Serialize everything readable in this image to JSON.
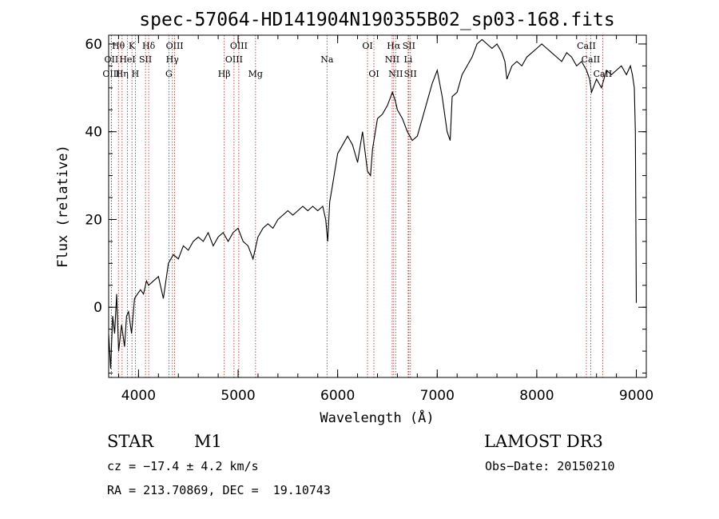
{
  "chart_data": {
    "type": "line",
    "title": "spec-57064-HD141904N190355B02_sp03-168.fits",
    "xlabel": "Wavelength (Å)",
    "ylabel": "Flux (relative)",
    "xlim": [
      3700,
      9100
    ],
    "ylim": [
      -16,
      62
    ],
    "xticks": [
      4000,
      5000,
      6000,
      7000,
      8000,
      9000
    ],
    "yticks": [
      0,
      20,
      40,
      60
    ],
    "series": [
      {
        "name": "flux",
        "x": [
          3700,
          3720,
          3740,
          3760,
          3780,
          3800,
          3830,
          3860,
          3880,
          3900,
          3930,
          3960,
          3990,
          4020,
          4050,
          4080,
          4100,
          4150,
          4200,
          4250,
          4300,
          4350,
          4400,
          4450,
          4500,
          4550,
          4600,
          4650,
          4700,
          4750,
          4800,
          4850,
          4900,
          4950,
          5000,
          5050,
          5100,
          5150,
          5200,
          5250,
          5300,
          5350,
          5400,
          5450,
          5500,
          5550,
          5600,
          5650,
          5700,
          5750,
          5800,
          5850,
          5880,
          5900,
          5920,
          5950,
          6000,
          6050,
          6100,
          6150,
          6200,
          6250,
          6300,
          6330,
          6350,
          6400,
          6450,
          6500,
          6550,
          6580,
          6600,
          6650,
          6700,
          6750,
          6800,
          6850,
          6900,
          6950,
          7000,
          7050,
          7100,
          7130,
          7150,
          7200,
          7250,
          7300,
          7350,
          7400,
          7450,
          7500,
          7550,
          7600,
          7650,
          7680,
          7700,
          7750,
          7800,
          7850,
          7900,
          7950,
          8000,
          8050,
          8100,
          8150,
          8200,
          8250,
          8300,
          8350,
          8400,
          8450,
          8500,
          8530,
          8550,
          8600,
          8650,
          8700,
          8750,
          8800,
          8850,
          8900,
          8940,
          8960,
          8980,
          8990,
          9000
        ],
        "y": [
          -6,
          -14,
          -2,
          -6,
          3,
          -10,
          -4,
          -9,
          -2,
          -1,
          -6,
          2,
          3,
          4,
          3,
          6,
          5,
          6,
          7,
          2,
          10,
          12,
          11,
          14,
          13,
          15,
          16,
          15,
          17,
          14,
          16,
          17,
          15,
          17,
          18,
          15,
          14,
          11,
          16,
          18,
          19,
          18,
          20,
          21,
          22,
          21,
          22,
          23,
          22,
          23,
          22,
          23,
          20,
          15,
          24,
          28,
          35,
          37,
          39,
          37,
          33,
          40,
          31,
          30,
          36,
          43,
          44,
          46,
          49,
          47,
          45,
          43,
          40,
          38,
          39,
          43,
          47,
          51,
          54,
          48,
          40,
          38,
          48,
          49,
          53,
          55,
          57,
          60,
          61,
          60,
          59,
          60,
          58,
          56,
          52,
          55,
          56,
          55,
          57,
          58,
          59,
          60,
          59,
          58,
          57,
          56,
          58,
          57,
          55,
          56,
          54,
          52,
          49,
          52,
          50,
          54,
          53,
          54,
          55,
          53,
          55,
          53,
          50,
          40,
          1
        ]
      }
    ],
    "lines": [
      {
        "label": "Hθ",
        "x": 3798,
        "row": 0
      },
      {
        "label": "K",
        "x": 3934,
        "row": 0
      },
      {
        "label": "Hδ",
        "x": 4102,
        "row": 0
      },
      {
        "label": "OIII",
        "x": 4363,
        "row": 0
      },
      {
        "label": "OIII",
        "x": 5007,
        "row": 0
      },
      {
        "label": "OI",
        "x": 6300,
        "row": 0
      },
      {
        "label": "Hα",
        "x": 6563,
        "row": 0
      },
      {
        "label": "SII",
        "x": 6716,
        "row": 0
      },
      {
        "label": "CaII",
        "x": 8498,
        "row": 0
      },
      {
        "label": "OII",
        "x": 3727,
        "row": 1
      },
      {
        "label": "HeI",
        "x": 3889,
        "row": 1
      },
      {
        "label": "SII",
        "x": 4070,
        "row": 1
      },
      {
        "label": "Hγ",
        "x": 4340,
        "row": 1
      },
      {
        "label": "OIII",
        "x": 4959,
        "row": 1
      },
      {
        "label": "Na",
        "x": 5893,
        "row": 1
      },
      {
        "label": "NII",
        "x": 6548,
        "row": 1
      },
      {
        "label": "Li",
        "x": 6708,
        "row": 1
      },
      {
        "label": "CaII",
        "x": 8542,
        "row": 1
      },
      {
        "label": "OIII",
        "x": 3727,
        "row": 2
      },
      {
        "label": "Hη",
        "x": 3835,
        "row": 2
      },
      {
        "label": "H",
        "x": 3968,
        "row": 2
      },
      {
        "label": "G",
        "x": 4305,
        "row": 2
      },
      {
        "label": "Hβ",
        "x": 4861,
        "row": 2
      },
      {
        "label": "Mg",
        "x": 5175,
        "row": 2
      },
      {
        "label": "OI",
        "x": 6364,
        "row": 2
      },
      {
        "label": "NII",
        "x": 6583,
        "row": 2
      },
      {
        "label": "SII",
        "x": 6731,
        "row": 2
      },
      {
        "label": "CaII",
        "x": 8662,
        "row": 2
      }
    ]
  },
  "info": {
    "obj_class": "STAR",
    "subclass": "M1",
    "survey": "LAMOST DR3",
    "cz": "cz = −17.4 ± 4.2 km/s",
    "obs_date": "Obs−Date: 20150210",
    "coords": "RA = 213.70869, DEC =  19.10743"
  },
  "colors": {
    "spectrum": "#000000",
    "line_marker": "#b22222"
  }
}
